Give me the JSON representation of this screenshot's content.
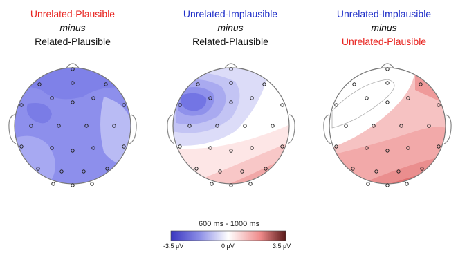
{
  "panels": [
    {
      "line1": "Unrelated-Plausible",
      "line1_color": "#e8231f",
      "line2": "minus",
      "line3": "Related-Plausible",
      "line3_color": "#111111"
    },
    {
      "line1": "Unrelated-Implausible",
      "line1_color": "#1f2fc8",
      "line2": "minus",
      "line3": "Related-Plausible",
      "line3_color": "#111111"
    },
    {
      "line1": "Unrelated-Implausible",
      "line1_color": "#1f2fc8",
      "line2": "minus",
      "line3": "Unrelated-Plausible",
      "line3_color": "#e8231f"
    }
  ],
  "colorbar": {
    "title": "600 ms - 1000 ms",
    "min_label": "-3.5 μV",
    "mid_label": "0 μV",
    "max_label": "3.5 μV",
    "colors": [
      "#3a36c0",
      "#8c8ee6",
      "#ffffff",
      "#ef8a8a",
      "#5a1a1a"
    ]
  }
}
